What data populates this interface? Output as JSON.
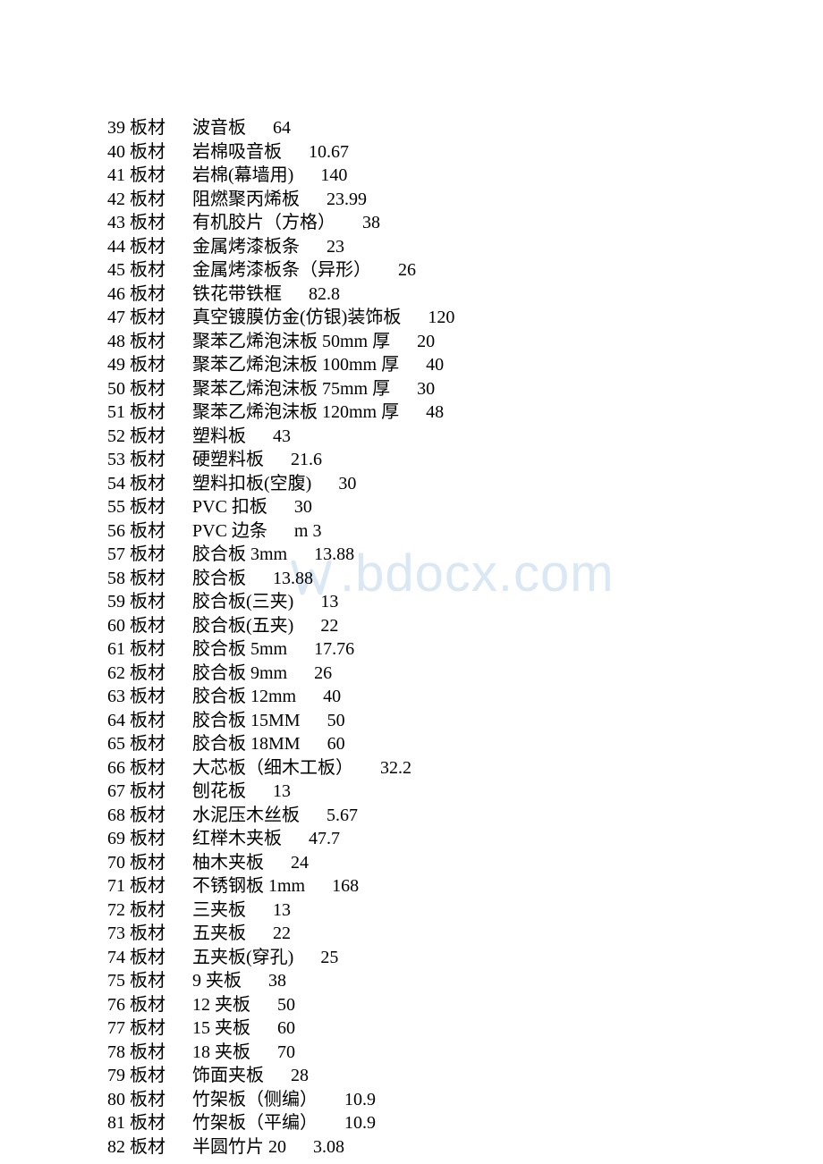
{
  "watermark": {
    "text": ".bdocx.com",
    "color": "#d9e8f4",
    "fontsize": 58
  },
  "list": {
    "category": "板材",
    "rows": [
      {
        "idx": "39",
        "name": "波音板",
        "extra": "",
        "price": "64"
      },
      {
        "idx": "40",
        "name": "岩棉吸音板",
        "extra": "",
        "price": "10.67"
      },
      {
        "idx": "41",
        "name": "岩棉(幕墙用)",
        "extra": "",
        "price": "140"
      },
      {
        "idx": "42",
        "name": "阻燃聚丙烯板",
        "extra": "",
        "price": "23.99"
      },
      {
        "idx": "43",
        "name": "有机胶片（方格）",
        "extra": "",
        "price": "38"
      },
      {
        "idx": "44",
        "name": "金属烤漆板条",
        "extra": "",
        "price": "23"
      },
      {
        "idx": "45",
        "name": "金属烤漆板条（异形）",
        "extra": "",
        "price": "26"
      },
      {
        "idx": "46",
        "name": "铁花带铁框",
        "extra": "",
        "price": "82.8"
      },
      {
        "idx": "47",
        "name": "真空镀膜仿金(仿银)装饰板",
        "extra": "",
        "price": "120"
      },
      {
        "idx": "48",
        "name": "聚苯乙烯泡沫板 50mm 厚",
        "extra": "",
        "price": "20"
      },
      {
        "idx": "49",
        "name": "聚苯乙烯泡沫板 100mm 厚",
        "extra": "",
        "price": "40"
      },
      {
        "idx": "50",
        "name": "聚苯乙烯泡沫板 75mm 厚",
        "extra": "",
        "price": "30"
      },
      {
        "idx": "51",
        "name": "聚苯乙烯泡沫板 120mm 厚",
        "extra": "",
        "price": "48"
      },
      {
        "idx": "52",
        "name": "塑料板",
        "extra": "",
        "price": "43"
      },
      {
        "idx": "53",
        "name": "硬塑料板",
        "extra": "",
        "price": "21.6"
      },
      {
        "idx": "54",
        "name": "塑料扣板(空腹)",
        "extra": "",
        "price": "30"
      },
      {
        "idx": "55",
        "name": "PVC 扣板",
        "extra": "",
        "price": "30"
      },
      {
        "idx": "56",
        "name": "PVC 边条",
        "extra": "m 3",
        "price": ""
      },
      {
        "idx": "57",
        "name": "胶合板 3mm",
        "extra": "",
        "price": "13.88"
      },
      {
        "idx": "58",
        "name": "胶合板",
        "extra": "",
        "price": "13.88"
      },
      {
        "idx": "59",
        "name": "胶合板(三夹)",
        "extra": "",
        "price": "13"
      },
      {
        "idx": "60",
        "name": "胶合板(五夹)",
        "extra": "",
        "price": "22"
      },
      {
        "idx": "61",
        "name": "胶合板 5mm",
        "extra": "",
        "price": "17.76"
      },
      {
        "idx": "62",
        "name": "胶合板 9mm",
        "extra": "",
        "price": "26"
      },
      {
        "idx": "63",
        "name": "胶合板 12mm",
        "extra": "",
        "price": "40"
      },
      {
        "idx": "64",
        "name": "胶合板 15MM",
        "extra": "",
        "price": "50"
      },
      {
        "idx": "65",
        "name": "胶合板 18MM",
        "extra": "",
        "price": "60"
      },
      {
        "idx": "66",
        "name": "大芯板（细木工板）",
        "extra": "",
        "price": "32.2"
      },
      {
        "idx": "67",
        "name": "刨花板",
        "extra": "",
        "price": "13"
      },
      {
        "idx": "68",
        "name": "水泥压木丝板",
        "extra": "",
        "price": "5.67"
      },
      {
        "idx": "69",
        "name": "红榉木夹板",
        "extra": "",
        "price": "47.7"
      },
      {
        "idx": "70",
        "name": "柚木夹板",
        "extra": "",
        "price": "24"
      },
      {
        "idx": "71",
        "name": "不锈钢板 1mm",
        "extra": "",
        "price": "168"
      },
      {
        "idx": "72",
        "name": "三夹板",
        "extra": "",
        "price": "13"
      },
      {
        "idx": "73",
        "name": "五夹板",
        "extra": "",
        "price": "22"
      },
      {
        "idx": "74",
        "name": "五夹板(穿孔)",
        "extra": "",
        "price": "25"
      },
      {
        "idx": "75",
        "name": "9 夹板",
        "extra": "",
        "price": "38"
      },
      {
        "idx": "76",
        "name": "12 夹板",
        "extra": "",
        "price": "50"
      },
      {
        "idx": "77",
        "name": "15 夹板",
        "extra": "",
        "price": "60"
      },
      {
        "idx": "78",
        "name": "18 夹板",
        "extra": "",
        "price": "70"
      },
      {
        "idx": "79",
        "name": "饰面夹板",
        "extra": "",
        "price": "28"
      },
      {
        "idx": "80",
        "name": "竹架板（侧编）",
        "extra": "",
        "price": "10.9"
      },
      {
        "idx": "81",
        "name": "竹架板（平编）",
        "extra": "",
        "price": "10.9"
      },
      {
        "idx": "82",
        "name": "半圆竹片 20",
        "extra": "",
        "price": "3.08"
      }
    ]
  },
  "style": {
    "text_color": "#000000",
    "background_color": "#ffffff",
    "font_size": 20,
    "line_height": 26.5
  }
}
